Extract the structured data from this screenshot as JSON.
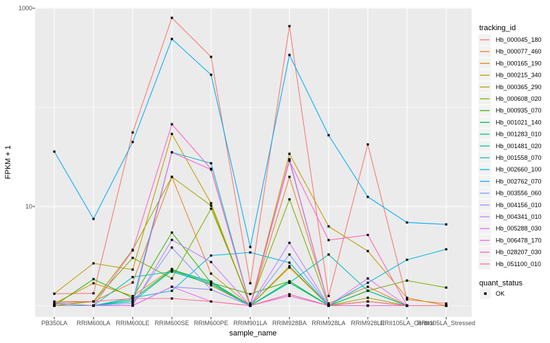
{
  "chart_data": {
    "type": "line",
    "title": "",
    "xlabel": "sample_name",
    "ylabel": "FPKM + 1",
    "y_scale": "log10",
    "y_ticks": [
      {
        "value": 10,
        "label": "10"
      },
      {
        "value": 1000,
        "label": "1000"
      }
    ],
    "y_minor": [
      1,
      100
    ],
    "grid": true,
    "legend_position": "right",
    "color_legend_title": "tracking_id",
    "shape_legend": {
      "title": "quant_status",
      "items": [
        {
          "label": "OK"
        }
      ]
    },
    "categories": [
      "PB350LA",
      "RRIM600LA",
      "RRIM600LE",
      "RRIM600SE",
      "RRIM600PE",
      "RRIM901LA",
      "RRIM928BA",
      "RRIM928LA",
      "RRIM928LE",
      "RRII105LA_Control",
      "RRII105LA_Stressed"
    ],
    "series": [
      {
        "name": "Hb_000045_180",
        "color": "#F8766D",
        "values": [
          1.32,
          1.33,
          55.8,
          800,
          323,
          1.68,
          660,
          1.25,
          42.3,
          1.15,
          1.05
        ]
      },
      {
        "name": "Hb_000077_460",
        "color": "#EA8331",
        "values": [
          1.1,
          1.1,
          1.71,
          19.9,
          2.1,
          1.0,
          19.9,
          1.05,
          1.55,
          1.0,
          1.0
        ]
      },
      {
        "name": "Hb_000165_190",
        "color": "#D89000",
        "values": [
          1.05,
          1.68,
          1.25,
          2.34,
          1.6,
          1.0,
          2.42,
          1.0,
          1.1,
          1.0,
          1.0
        ]
      },
      {
        "name": "Hb_000215_340",
        "color": "#C09B00",
        "values": [
          1.32,
          2.67,
          2.31,
          54,
          10.8,
          1.0,
          34,
          6.3,
          3.55,
          1.2,
          1.0
        ]
      },
      {
        "name": "Hb_000365_290",
        "color": "#A3A500",
        "values": [
          1.0,
          1.1,
          3.66,
          19.9,
          10.2,
          1.0,
          2.5,
          1.0,
          1.2,
          1.0,
          1.0
        ]
      },
      {
        "name": "Hb_000608_020",
        "color": "#7CAE00",
        "values": [
          1.0,
          1.1,
          3.03,
          1.88,
          9.5,
          1.05,
          11.8,
          1.0,
          1.41,
          1.79,
          1.52
        ]
      },
      {
        "name": "Hb_000935_070",
        "color": "#39B600",
        "values": [
          1.0,
          1.85,
          1.2,
          5.46,
          1.7,
          1.31,
          1.76,
          1.0,
          1.1,
          1.0,
          1.0
        ]
      },
      {
        "name": "Hb_001021_140",
        "color": "#00BB4E",
        "values": [
          1.0,
          1.0,
          1.15,
          2.3,
          1.75,
          1.0,
          1.76,
          1.0,
          1.41,
          1.0,
          1.0
        ]
      },
      {
        "name": "Hb_001283_010",
        "color": "#00C087",
        "values": [
          1.0,
          1.0,
          1.1,
          2.25,
          1.7,
          1.0,
          1.7,
          1.0,
          1.0,
          1.0,
          1.0
        ]
      },
      {
        "name": "Hb_001481_020",
        "color": "#00C1AA",
        "values": [
          1.0,
          1.0,
          1.94,
          2.2,
          1.65,
          1.0,
          1.7,
          3.28,
          1.41,
          1.0,
          1.0
        ]
      },
      {
        "name": "Hb_001558_070",
        "color": "#00BFC4",
        "values": [
          1.05,
          1.0,
          1.1,
          35.2,
          27.3,
          1.0,
          29.1,
          1.0,
          1.0,
          1.0,
          1.0
        ]
      },
      {
        "name": "Hb_002660_100",
        "color": "#00B8E5",
        "values": [
          1.0,
          1.0,
          1.2,
          1.41,
          3.2,
          3.44,
          2.71,
          1.0,
          1.7,
          2.9,
          3.7
        ]
      },
      {
        "name": "Hb_002762_070",
        "color": "#00ACFC",
        "values": [
          35.8,
          7.5,
          44.7,
          490,
          213,
          3.9,
          338,
          52.4,
          12.5,
          6.9,
          6.6
        ]
      },
      {
        "name": "Hb_003556_060",
        "color": "#7C9FFF",
        "values": [
          1.0,
          1.0,
          1.05,
          3.85,
          1.45,
          1.0,
          3.28,
          1.0,
          1.0,
          1.0,
          1.0
        ]
      },
      {
        "name": "Hb_004156_010",
        "color": "#9590FF",
        "values": [
          1.0,
          1.0,
          1.0,
          1.55,
          1.45,
          1.0,
          1.3,
          1.0,
          1.0,
          1.0,
          1.0
        ]
      },
      {
        "name": "Hb_004341_010",
        "color": "#C77CFF",
        "values": [
          1.0,
          1.0,
          1.0,
          4.6,
          2.75,
          1.0,
          4.3,
          1.0,
          1.0,
          1.0,
          1.0
        ]
      },
      {
        "name": "Hb_005288_030",
        "color": "#E76BF3",
        "values": [
          1.0,
          1.0,
          1.0,
          1.55,
          1.1,
          1.0,
          1.25,
          1.0,
          1.88,
          1.0,
          1.0
        ]
      },
      {
        "name": "Hb_006478_170",
        "color": "#F863DF",
        "values": [
          1.0,
          1.0,
          1.0,
          35.2,
          23.6,
          1.0,
          30,
          1.0,
          1.0,
          1.0,
          1.0
        ]
      },
      {
        "name": "Hb_028207_030",
        "color": "#FF61C3",
        "values": [
          1.0,
          1.0,
          3.6,
          67.6,
          24,
          1.0,
          29,
          4.58,
          5.16,
          1.0,
          1.0
        ]
      },
      {
        "name": "Hb_051100_010",
        "color": "#FF6C91",
        "values": [
          1.06,
          1.1,
          1.18,
          1.18,
          1.1,
          1.0,
          1.3,
          1.0,
          1.1,
          1.0,
          1.0
        ]
      }
    ]
  },
  "panel": {
    "bg": "#EBEBEB",
    "grid_color": "#FFFFFF",
    "axis_text_color": "#4D4D4D",
    "axis_title_color": "#000000",
    "tick_color": "#333333",
    "point_color": "#000000",
    "legend_key_bg": "#F2F2F2"
  }
}
